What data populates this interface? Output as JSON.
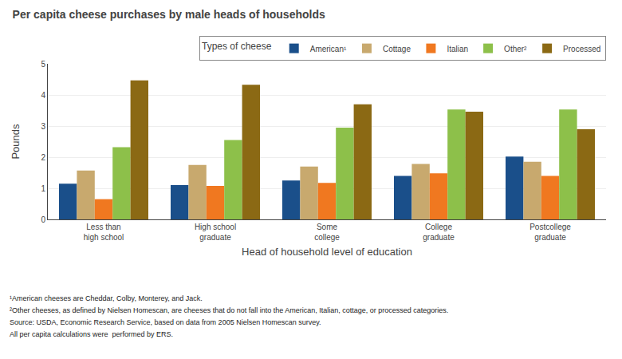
{
  "chart_data": {
    "type": "bar",
    "title": "Per capita cheese purchases by male heads of households",
    "xlabel": "Head of household level of education",
    "ylabel": "Pounds",
    "categories": [
      "Less than\nhigh school",
      "High school\ngraduate",
      "Some\ncollege",
      "College\ngraduate",
      "Postcollege\ngraduate"
    ],
    "series": [
      {
        "name": "American¹",
        "color": "#1a4f8a",
        "values": [
          1.15,
          1.1,
          1.25,
          1.4,
          2.02
        ]
      },
      {
        "name": "Cottage",
        "color": "#c8a96e",
        "values": [
          1.57,
          1.75,
          1.7,
          1.78,
          1.85
        ]
      },
      {
        "name": "Italian",
        "color": "#f07820",
        "values": [
          0.65,
          1.08,
          1.17,
          1.48,
          1.4
        ]
      },
      {
        "name": "Other²",
        "color": "#8dc04a",
        "values": [
          2.32,
          2.55,
          2.95,
          3.53,
          3.53
        ]
      },
      {
        "name": "Processed",
        "color": "#8b6914",
        "values": [
          4.47,
          4.33,
          3.7,
          3.46,
          2.9
        ]
      }
    ],
    "legend_title": "Types of cheese",
    "legend": "upper right",
    "ylim": [
      0,
      5
    ],
    "yticks": [
      0,
      1,
      2,
      3,
      4,
      5
    ],
    "grid": true,
    "annotations": [
      "¹American cheeses are Cheddar, Colby, Monterey, and Jack.",
      "²Other cheeses, as defined by Nielsen Homescan, are cheeses that do not fall into the American, Italian, cottage, or processed categories.",
      "Source: USDA, Economic Research Service, based on data from 2005 Nielsen Homescan survey.",
      "All per capita calculations were  performed by ERS."
    ]
  }
}
